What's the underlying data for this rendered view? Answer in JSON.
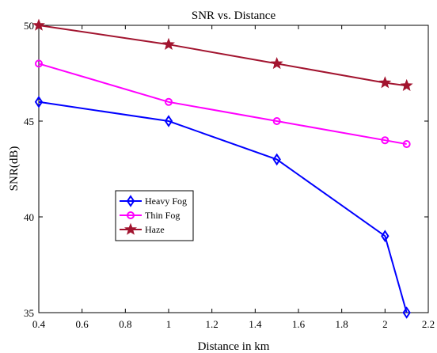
{
  "chart_data": {
    "type": "line",
    "title": "SNR vs. Distance",
    "xlabel": "Distance in km",
    "ylabel": "SNR(dB)",
    "xlim": [
      0.4,
      2.2
    ],
    "ylim": [
      35,
      50
    ],
    "xticks": [
      "0.4",
      "0.6",
      "0.8",
      "1",
      "1.2",
      "1.4",
      "1.6",
      "1.8",
      "2",
      "2.2"
    ],
    "yticks": [
      "35",
      "40",
      "45",
      "50"
    ],
    "grid": false,
    "legend_position": "center-left",
    "series": [
      {
        "name": "Heavy Fog",
        "color": "#0000ff",
        "marker": "diamond",
        "x": [
          0.4,
          1.0,
          1.5,
          2.0,
          2.1
        ],
        "y": [
          46,
          45,
          43,
          39,
          35
        ]
      },
      {
        "name": "Thin Fog",
        "color": "#ff00ff",
        "marker": "circle",
        "x": [
          0.4,
          1.0,
          1.5,
          2.0,
          2.1
        ],
        "y": [
          48,
          46,
          45,
          44,
          43.8
        ]
      },
      {
        "name": "Haze",
        "color": "#a2142f",
        "marker": "star",
        "x": [
          0.4,
          1.0,
          1.5,
          2.0,
          2.1
        ],
        "y": [
          50,
          49,
          48,
          47,
          46.85
        ]
      }
    ]
  }
}
